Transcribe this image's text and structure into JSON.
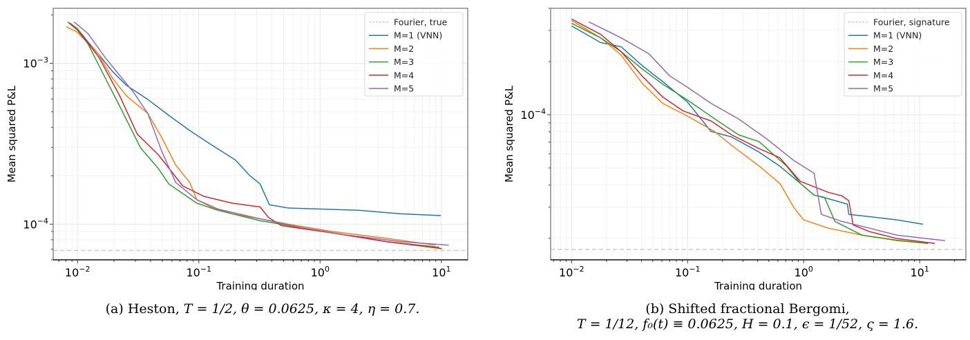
{
  "chart_data": [
    {
      "type": "line",
      "panel": "a",
      "xscale": "log",
      "yscale": "log",
      "xlabel": "Training duration",
      "ylabel": "Mean squared P&L",
      "xlim": [
        0.0063,
        16.5
      ],
      "ylim": [
        6e-05,
        0.0022
      ],
      "xticks": [
        {
          "value": 0.01,
          "base": "10",
          "exp": "−2"
        },
        {
          "value": 0.1,
          "base": "10",
          "exp": "−1"
        },
        {
          "value": 1,
          "base": "10",
          "exp": "0"
        },
        {
          "value": 10,
          "base": "10",
          "exp": "1"
        }
      ],
      "yticks": [
        {
          "value": 0.001,
          "base": "10",
          "exp": "−3"
        },
        {
          "value": 0.0001,
          "base": "10",
          "exp": "−4"
        }
      ],
      "grid": true,
      "legend_position": "top-right",
      "reference_line": {
        "name": "Fourier, true",
        "value": 6.86e-05,
        "color": "#cccccc",
        "style": "dashed"
      },
      "series": [
        {
          "name": "M=1 (VNN)",
          "color": "#1f77b4",
          "x": [
            0.00864,
            0.01,
            0.0122,
            0.0149,
            0.0195,
            0.0254,
            0.0379,
            0.0565,
            0.0842,
            0.126,
            0.201,
            0.262,
            0.32,
            0.382,
            0.546,
            1.07,
            2.08,
            4.6,
            9.9
          ],
          "y": [
            0.00178,
            0.00164,
            0.00136,
            0.00114,
            0.000888,
            0.000728,
            0.000597,
            0.000475,
            0.000382,
            0.000313,
            0.00025,
            0.000201,
            0.000178,
            0.000132,
            0.000126,
            0.000124,
            0.000122,
            0.000116,
            0.000113
          ]
        },
        {
          "name": "M=2",
          "color": "#ff7f0e",
          "x": [
            0.00808,
            0.01,
            0.0149,
            0.0195,
            0.0254,
            0.0379,
            0.0495,
            0.0645,
            0.0842,
            0.0962,
            0.126,
            0.188,
            0.32,
            0.546,
            1.22,
            3.5,
            8.9
          ],
          "y": [
            0.00169,
            0.00156,
            0.00114,
            0.000804,
            0.000627,
            0.000489,
            0.000346,
            0.000233,
            0.000182,
            0.000142,
            0.000128,
            0.000116,
            0.000108,
            0.0001,
            9.04e-05,
            8.18e-05,
            7.41e-05
          ]
        },
        {
          "name": "M=3",
          "color": "#2ca02c",
          "x": [
            0.0083,
            0.01,
            0.0122,
            0.0149,
            0.0223,
            0.0331,
            0.0464,
            0.0565,
            0.0962,
            0.144,
            0.32,
            0.713,
            1.59,
            3.5,
            9.6
          ],
          "y": [
            0.00181,
            0.00164,
            0.00132,
            0.00098,
            0.00054,
            0.000298,
            0.000222,
            0.000178,
            0.000135,
            0.000122,
            0.000105,
            9.5e-05,
            8.6e-05,
            7.79e-05,
            7.19e-05
          ]
        },
        {
          "name": "M=4",
          "color": "#d62728",
          "x": [
            0.00852,
            0.01,
            0.0149,
            0.0223,
            0.031,
            0.0464,
            0.0737,
            0.11,
            0.188,
            0.32,
            0.376,
            0.479,
            1.22,
            3.5,
            10.1
          ],
          "y": [
            0.00178,
            0.00161,
            0.0011,
            0.000627,
            0.000364,
            0.00027,
            0.000173,
            0.000149,
            0.000135,
            0.000128,
            0.00011,
            9.79e-05,
            8.85e-05,
            7.79e-05,
            7.04e-05
          ]
        },
        {
          "name": "M=5",
          "color": "#9467bd",
          "x": [
            0.00936,
            0.0122,
            0.017,
            0.029,
            0.0379,
            0.0495,
            0.0645,
            0.0962,
            0.144,
            0.32,
            0.713,
            1.59,
            4.6,
            11.5
          ],
          "y": [
            0.00181,
            0.00153,
            0.00108,
            0.000659,
            0.000489,
            0.000284,
            0.000182,
            0.000142,
            0.000124,
            0.000108,
            9.5e-05,
            8.6e-05,
            7.79e-05,
            7.41e-05
          ]
        }
      ]
    },
    {
      "type": "line",
      "panel": "b",
      "xscale": "log",
      "yscale": "log",
      "xlabel": "Training duration",
      "ylabel": "Mean squared P&L",
      "xlim": [
        0.0066,
        25
      ],
      "ylim": [
        1.51e-05,
        0.0004
      ],
      "xticks": [
        {
          "value": 0.01,
          "base": "10",
          "exp": "−2"
        },
        {
          "value": 0.1,
          "base": "10",
          "exp": "−1"
        },
        {
          "value": 1,
          "base": "10",
          "exp": "0"
        },
        {
          "value": 10,
          "base": "10",
          "exp": "1"
        }
      ],
      "yticks": [
        {
          "value": 0.0001,
          "base": "10",
          "exp": "−4"
        }
      ],
      "grid": true,
      "legend_position": "top-right",
      "reference_line": {
        "name": "Fourier, signature",
        "value": 1.73e-05,
        "color": "#cccccc",
        "style": "dashed"
      },
      "series": [
        {
          "name": "M=1 (VNN)",
          "color": "#1f77b4",
          "x": [
            0.01,
            0.0178,
            0.0268,
            0.0404,
            0.0609,
            0.0996,
            0.159,
            0.239,
            0.414,
            0.623,
            0.936,
            1.23,
            1.63,
            2.38,
            2.45,
            3.7,
            6.4,
            10.7
          ],
          "y": [
            0.000318,
            0.000256,
            0.000242,
            0.00019,
            0.000154,
            0.000118,
            8.05e-05,
            7.49e-05,
            6.14e-05,
            5.12e-05,
            4.09e-05,
            3.51e-05,
            3.35e-05,
            3.12e-05,
            2.73e-05,
            2.65e-05,
            2.54e-05,
            2.4e-05
          ]
        },
        {
          "name": "M=2",
          "color": "#ff7f0e",
          "x": [
            0.01,
            0.0178,
            0.0268,
            0.0404,
            0.0609,
            0.0996,
            0.17,
            0.239,
            0.414,
            0.623,
            0.822,
            1.0,
            1.63,
            3.2,
            6.4,
            11.8
          ],
          "y": [
            0.000341,
            0.000272,
            0.000217,
            0.000151,
            0.000116,
            9.82e-05,
            8.05e-05,
            6.72e-05,
            5.12e-05,
            4.09e-05,
            2.99e-05,
            2.54e-05,
            2.28e-05,
            2.08e-05,
            1.94e-05,
            1.87e-05
          ]
        },
        {
          "name": "M=3",
          "color": "#2ca02c",
          "x": [
            0.01,
            0.0178,
            0.0268,
            0.0404,
            0.0609,
            0.0996,
            0.182,
            0.274,
            0.414,
            0.714,
            0.936,
            1.23,
            1.51,
            1.86,
            3.2,
            6.4,
            11.8
          ],
          "y": [
            0.000329,
            0.000272,
            0.000227,
            0.000182,
            0.000149,
            0.000121,
            9.22e-05,
            7.7e-05,
            7.03e-05,
            5.12e-05,
            4.09e-05,
            3.51e-05,
            3.41e-05,
            2.49e-05,
            2.08e-05,
            1.95e-05,
            1.87e-05
          ]
        },
        {
          "name": "M=4",
          "color": "#d62728",
          "x": [
            0.01,
            0.0178,
            0.0268,
            0.0404,
            0.0609,
            0.0917,
            0.159,
            0.239,
            0.414,
            0.623,
            0.936,
            1.63,
            2.13,
            2.45,
            2.67,
            3.7,
            6.4,
            13.5
          ],
          "y": [
            0.000348,
            0.000285,
            0.000227,
            0.000166,
            0.000126,
            0.000105,
            9.22e-05,
            7.7e-05,
            6.42e-05,
            5.71e-05,
            4.2e-05,
            3.64e-05,
            3.48e-05,
            3.26e-05,
            2.38e-05,
            2.18e-05,
            1.99e-05,
            1.87e-05
          ]
        },
        {
          "name": "M=5",
          "color": "#9467bd",
          "x": [
            0.0141,
            0.0268,
            0.0464,
            0.07,
            0.0996,
            0.159,
            0.274,
            0.472,
            0.822,
            1.23,
            1.42,
            2.13,
            3.7,
            6.4,
            16.6
          ],
          "y": [
            0.000335,
            0.000272,
            0.000221,
            0.000166,
            0.000143,
            0.000116,
            9.47e-05,
            7.36e-05,
            5.51e-05,
            4.67e-05,
            2.73e-05,
            2.49e-05,
            2.28e-05,
            2.08e-05,
            1.94e-05
          ]
        }
      ]
    }
  ],
  "captions": {
    "a": {
      "prefix": "(a) Heston, ",
      "math": "T = 1/2, θ = 0.0625, κ = 4, η = 0.7."
    },
    "b": {
      "line1": "(b) Shifted fractional Bergomi,",
      "line2": "T = 1/12, f₀(t) ≡ 0.0625, H = 0.1, ϵ = 1/52, ς = 1.6."
    }
  }
}
